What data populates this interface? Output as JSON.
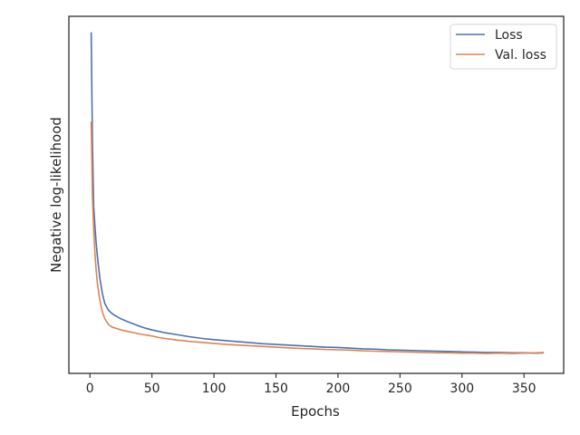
{
  "chart_data": {
    "type": "line",
    "title": "",
    "xlabel": "Epochs",
    "ylabel": "Negative log-likelihood",
    "xlim": [
      -17,
      382
    ],
    "ylim": [
      0,
      1
    ],
    "y_tick_labels_shown": false,
    "x_ticks": [
      0,
      50,
      100,
      150,
      200,
      250,
      300,
      350
    ],
    "x_tick_labels": [
      "0",
      "50",
      "100",
      "150",
      "200",
      "250",
      "300",
      "350"
    ],
    "grid": false,
    "legend": {
      "position": "top-right"
    },
    "series": [
      {
        "name": "Loss",
        "color": "#4c72b0",
        "x": [
          1,
          2,
          3,
          4,
          5,
          6,
          8,
          10,
          12,
          15,
          18,
          20,
          25,
          30,
          35,
          40,
          45,
          50,
          55,
          60,
          70,
          80,
          90,
          100,
          110,
          120,
          130,
          140,
          150,
          160,
          170,
          180,
          190,
          200,
          210,
          220,
          230,
          240,
          250,
          260,
          270,
          280,
          290,
          300,
          310,
          320,
          330,
          340,
          350,
          360,
          366
        ],
        "y": [
          0.985,
          0.66,
          0.47,
          0.41,
          0.36,
          0.32,
          0.255,
          0.21,
          0.18,
          0.16,
          0.15,
          0.145,
          0.135,
          0.127,
          0.12,
          0.113,
          0.107,
          0.102,
          0.098,
          0.094,
          0.088,
          0.082,
          0.077,
          0.073,
          0.07,
          0.067,
          0.064,
          0.061,
          0.059,
          0.057,
          0.055,
          0.053,
          0.051,
          0.05,
          0.048,
          0.046,
          0.045,
          0.043,
          0.042,
          0.041,
          0.04,
          0.039,
          0.038,
          0.037,
          0.036,
          0.035,
          0.035,
          0.034,
          0.034,
          0.033,
          0.034
        ]
      },
      {
        "name": "Val. loss",
        "color": "#dd8452",
        "x": [
          1,
          2,
          3,
          4,
          5,
          6,
          8,
          10,
          12,
          15,
          18,
          20,
          25,
          30,
          35,
          40,
          45,
          50,
          55,
          60,
          70,
          80,
          90,
          100,
          110,
          120,
          130,
          140,
          150,
          160,
          170,
          180,
          190,
          200,
          210,
          220,
          230,
          240,
          250,
          260,
          270,
          280,
          290,
          300,
          310,
          320,
          330,
          340,
          350,
          360,
          366
        ],
        "y": [
          0.72,
          0.5,
          0.4,
          0.33,
          0.28,
          0.24,
          0.19,
          0.155,
          0.135,
          0.118,
          0.11,
          0.108,
          0.102,
          0.098,
          0.094,
          0.09,
          0.087,
          0.084,
          0.08,
          0.077,
          0.072,
          0.068,
          0.065,
          0.062,
          0.059,
          0.057,
          0.055,
          0.053,
          0.051,
          0.049,
          0.047,
          0.046,
          0.044,
          0.043,
          0.042,
          0.04,
          0.039,
          0.038,
          0.037,
          0.036,
          0.035,
          0.034,
          0.034,
          0.033,
          0.033,
          0.032,
          0.033,
          0.032,
          0.033,
          0.034,
          0.035
        ]
      }
    ]
  }
}
